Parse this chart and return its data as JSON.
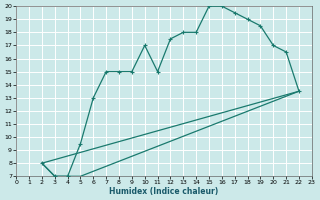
{
  "xlabel": "Humidex (Indice chaleur)",
  "xlim": [
    0,
    23
  ],
  "ylim": [
    7,
    20
  ],
  "xticks": [
    0,
    1,
    2,
    3,
    4,
    5,
    6,
    7,
    8,
    9,
    10,
    11,
    12,
    13,
    14,
    15,
    16,
    17,
    18,
    19,
    20,
    21,
    22,
    23
  ],
  "yticks": [
    7,
    8,
    9,
    10,
    11,
    12,
    13,
    14,
    15,
    16,
    17,
    18,
    19,
    20
  ],
  "bg_color": "#cce9e9",
  "grid_color": "#ffffff",
  "line_color": "#1a7a6e",
  "line1_x": [
    2,
    3,
    4,
    5,
    6,
    7,
    8,
    9,
    10,
    11,
    12,
    13,
    14,
    15,
    16,
    17,
    18,
    19,
    20,
    21,
    22
  ],
  "line1_y": [
    8.0,
    7.0,
    7.0,
    9.5,
    13.0,
    15.0,
    15.0,
    15.0,
    17.0,
    15.0,
    17.5,
    18.0,
    18.0,
    20.0,
    20.0,
    19.5,
    19.0,
    18.5,
    17.0,
    16.5,
    13.5
  ],
  "line2_x": [
    2,
    22
  ],
  "line2_y": [
    8.0,
    13.5
  ],
  "line3_x": [
    2,
    3,
    4,
    5,
    22
  ],
  "line3_y": [
    8.0,
    7.0,
    7.0,
    7.0,
    13.5
  ]
}
